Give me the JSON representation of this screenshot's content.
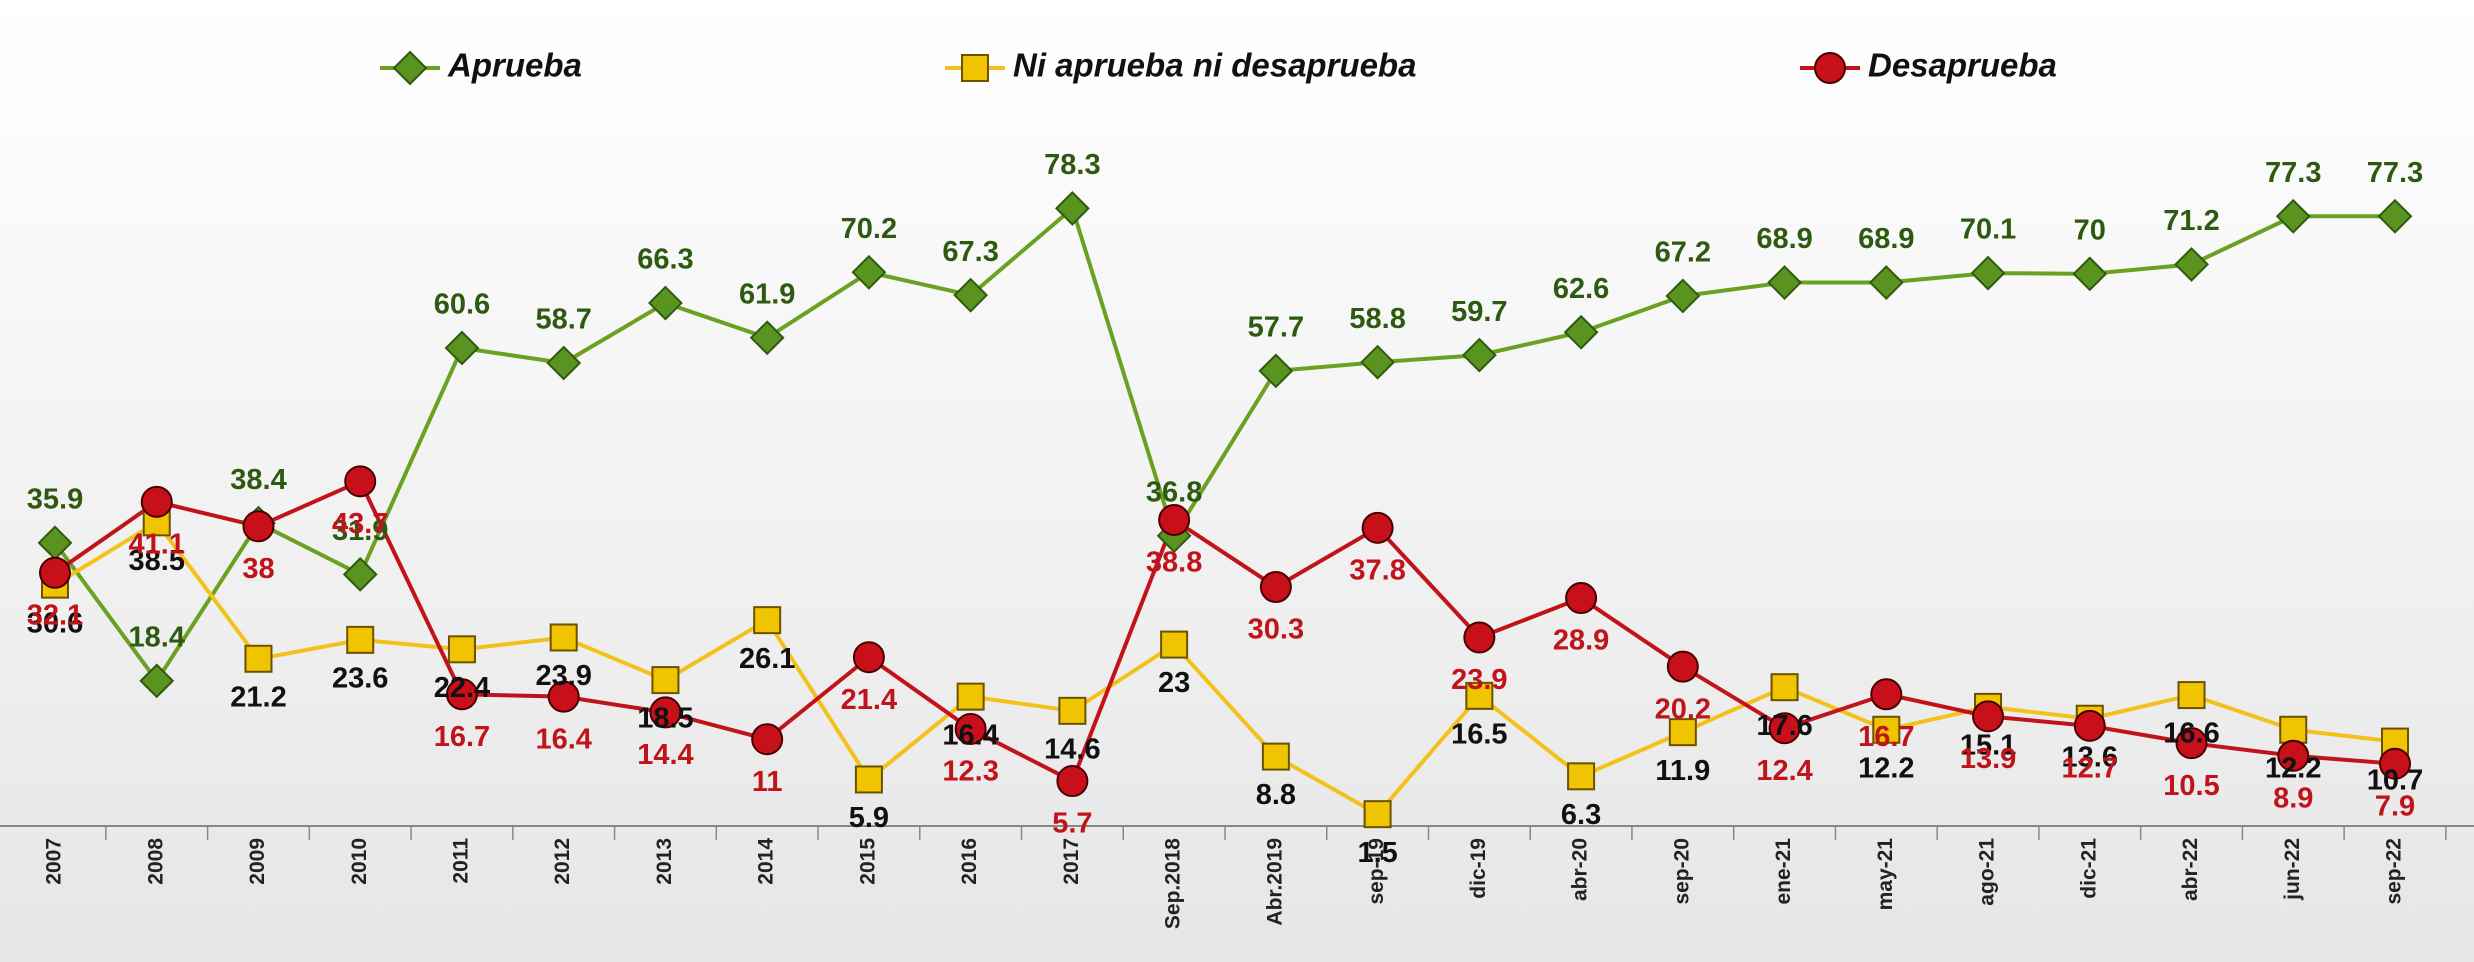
{
  "chart_data": {
    "type": "line",
    "categories": [
      "2007",
      "2008",
      "2009",
      "2010",
      "2011",
      "2012",
      "2013",
      "2014",
      "2015",
      "2016",
      "2017",
      "Sep.2018",
      "Abr.2019",
      "sep-19",
      "dic-19",
      "abr-20",
      "sep-20",
      "ene-21",
      "may-21",
      "ago-21",
      "dic-21",
      "abr-22",
      "jun-22",
      "sep-22"
    ],
    "ylim": [
      0,
      80
    ],
    "legend": "top",
    "series": [
      {
        "name": "Aprueba",
        "color": "#6aa121",
        "label_color": "#2d5a10",
        "marker": "diamond",
        "values": [
          35.9,
          18.4,
          38.4,
          31.9,
          60.6,
          58.7,
          66.3,
          61.9,
          70.2,
          67.3,
          78.3,
          36.8,
          57.7,
          58.8,
          59.7,
          62.6,
          67.2,
          68.9,
          68.9,
          70.1,
          70.0,
          71.2,
          77.3,
          77.3
        ]
      },
      {
        "name": "Ni aprueba ni desaprueba",
        "color": "#f2c21b",
        "label_color": "#111111",
        "marker": "square",
        "values": [
          30.6,
          38.5,
          21.2,
          23.6,
          22.4,
          23.9,
          18.5,
          26.1,
          5.9,
          16.4,
          14.6,
          23.0,
          8.8,
          1.5,
          16.5,
          6.3,
          11.9,
          17.6,
          12.2,
          15.1,
          13.6,
          16.6,
          12.2,
          10.7
        ]
      },
      {
        "name": "Desaprueba",
        "color": "#c0141a",
        "label_color": "#c0141a",
        "marker": "circle",
        "values": [
          32.1,
          41.1,
          38.0,
          43.7,
          16.7,
          16.4,
          14.4,
          11.0,
          21.4,
          12.3,
          5.7,
          38.8,
          30.3,
          37.8,
          23.9,
          28.9,
          20.2,
          12.4,
          16.7,
          13.9,
          12.7,
          10.5,
          8.9,
          7.9
        ]
      }
    ]
  }
}
